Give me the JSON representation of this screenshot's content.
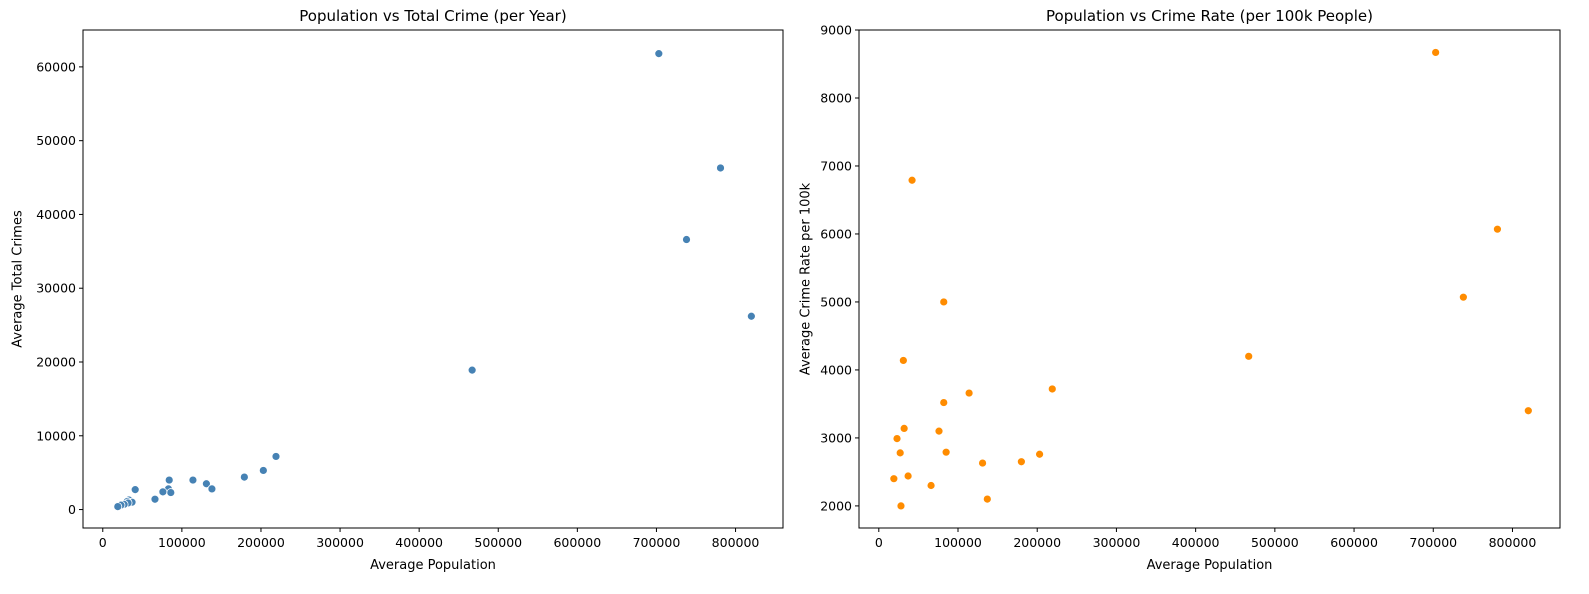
{
  "chart_data": [
    {
      "type": "scatter",
      "title": "Population vs Total Crime (per Year)",
      "xlabel": "Average Population",
      "ylabel": "Average Total Crimes",
      "xlim": [
        -25000,
        860000
      ],
      "ylim": [
        -2500,
        65000
      ],
      "xticks": [
        0,
        100000,
        200000,
        300000,
        400000,
        500000,
        600000,
        700000,
        800000
      ],
      "yticks": [
        0,
        10000,
        20000,
        30000,
        40000,
        50000,
        60000
      ],
      "color": "#4682b4",
      "grid": false,
      "x": [
        703000,
        781000,
        738000,
        820000,
        467000,
        219000,
        203000,
        179000,
        114000,
        131000,
        138000,
        84000,
        83000,
        86000,
        76000,
        66000,
        41000,
        33000,
        37000,
        31000,
        32000,
        27000,
        23000,
        19000
      ],
      "y": [
        61800,
        46300,
        36600,
        26200,
        18900,
        7200,
        5300,
        4400,
        4000,
        3500,
        2800,
        4000,
        2800,
        2300,
        2400,
        1400,
        2700,
        1300,
        1000,
        1100,
        900,
        700,
        600,
        400
      ]
    },
    {
      "type": "scatter",
      "title": "Population vs Crime Rate (per 100k People)",
      "xlabel": "Average Population",
      "ylabel": "Average Crime Rate per 100k",
      "xlim": [
        -25000,
        860000
      ],
      "ylim": [
        1675,
        9000
      ],
      "xticks": [
        0,
        100000,
        200000,
        300000,
        400000,
        500000,
        600000,
        700000,
        800000
      ],
      "yticks": [
        2000,
        3000,
        4000,
        5000,
        6000,
        7000,
        8000,
        9000
      ],
      "color": "#ff8c00",
      "grid": false,
      "x": [
        703000,
        781000,
        738000,
        820000,
        467000,
        42000,
        82000,
        31000,
        219000,
        114000,
        82000,
        32000,
        76000,
        23000,
        85000,
        27000,
        203000,
        180000,
        131000,
        37000,
        19000,
        66000,
        137000,
        28000
      ],
      "y": [
        8670,
        6070,
        5070,
        3400,
        4200,
        6790,
        5000,
        4140,
        3720,
        3660,
        3520,
        3140,
        3100,
        2990,
        2790,
        2780,
        2760,
        2650,
        2630,
        2440,
        2400,
        2300,
        2100,
        2000
      ]
    }
  ]
}
